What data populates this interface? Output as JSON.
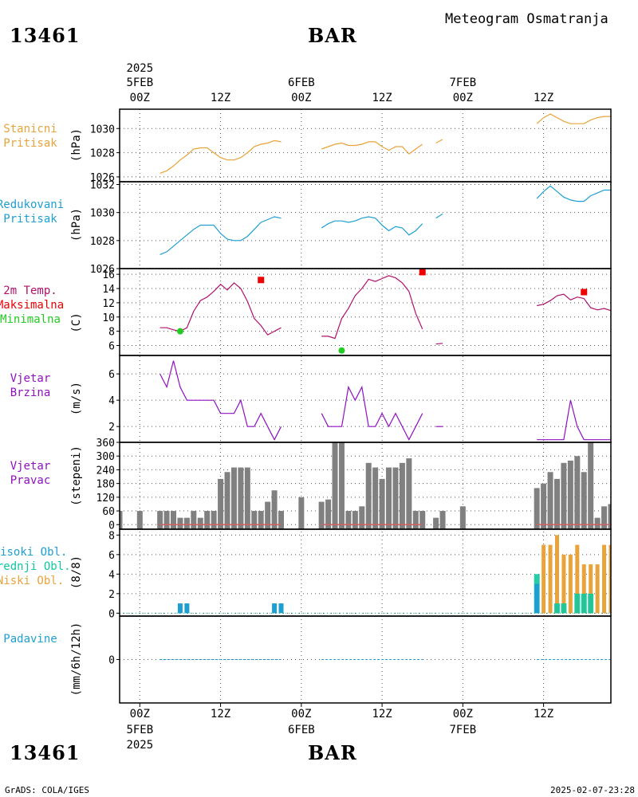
{
  "header": {
    "station_id": "13461",
    "station_name": "BAR",
    "product_title": "Meteogram Osmatranja"
  },
  "footer": {
    "station_id": "13461",
    "station_name": "BAR",
    "credit": "GrADS: COLA/IGES",
    "timestamp": "2025-02-07-23:28"
  },
  "colors": {
    "pressure_station": "#e8a33a",
    "pressure_reduced": "#1e9fd2",
    "temperature": "#b0106a",
    "tmax": "#ee0000",
    "tmin": "#22cc22",
    "wind": "#9010c0",
    "wind_dir_bar": "#808080",
    "wind_dir_base": "#d06060",
    "cloud_high": "#1e9fd2",
    "cloud_mid": "#10c8a0",
    "cloud_low": "#e8a33a",
    "precip": "#1e9fd2"
  },
  "chart_data": {
    "type": "line",
    "time_axis": {
      "top_year": "2025",
      "day_labels": [
        {
          "day": "5FEB",
          "hour": "00Z",
          "h": 0
        },
        {
          "day": "6FEB",
          "hour": "00Z",
          "h": 24
        },
        {
          "day": "7FEB",
          "hour": "00Z",
          "h": 48
        }
      ],
      "noon_labels": [
        {
          "label": "12Z",
          "h": 12
        },
        {
          "label": "12Z",
          "h": 36
        },
        {
          "label": "12Z",
          "h": 60
        }
      ],
      "bottom_year": "2025",
      "range_hours": [
        -3,
        70
      ]
    },
    "panels": [
      {
        "id": "station_pressure",
        "label": [
          "Stanicni",
          "Pritisak"
        ],
        "unit": "(hPa)",
        "ylim": [
          1025.6,
          1031.6
        ],
        "yticks": [
          1026,
          1028,
          1030
        ],
        "series": [
          {
            "x": [
              3,
              4,
              5,
              6,
              7,
              8,
              9,
              10,
              11,
              12,
              13,
              14,
              15,
              16,
              17,
              18,
              19,
              20,
              21,
              22,
              23
            ],
            "y": [
              1026.3,
              1026.5,
              1026.9,
              1027.4,
              1027.8,
              1028.3,
              1028.4,
              1028.4,
              1028.0,
              1027.6,
              1027.4,
              1027.4,
              1027.6,
              1028.0,
              1028.5,
              1028.7,
              1028.8,
              1029.0,
              1028.9,
              null,
              null
            ]
          },
          {
            "x": [
              27,
              28,
              29,
              30,
              31,
              32,
              33,
              34,
              35,
              36,
              37,
              38,
              39,
              40,
              41,
              42,
              43,
              44
            ],
            "y": [
              1028.3,
              1028.5,
              1028.7,
              1028.8,
              1028.6,
              1028.6,
              1028.7,
              1028.9,
              1028.9,
              1028.5,
              1028.2,
              1028.5,
              1028.5,
              1027.9,
              1028.3,
              1028.7,
              null,
              null
            ]
          },
          {
            "x": [
              44,
              45
            ],
            "y": [
              1028.8,
              1029.1
            ]
          },
          {
            "x": [
              59,
              60,
              61,
              62,
              63,
              64,
              65,
              66,
              67,
              68,
              69,
              70
            ],
            "y": [
              1030.4,
              1030.9,
              1031.2,
              1030.9,
              1030.6,
              1030.4,
              1030.4,
              1030.4,
              1030.7,
              1030.9,
              1031.0,
              1031.0
            ]
          }
        ]
      },
      {
        "id": "reduced_pressure",
        "label": [
          "Redukovani",
          "Pritisak"
        ],
        "unit": "(hPa)",
        "ylim": [
          1026.0,
          1032.2
        ],
        "yticks": [
          1026,
          1028,
          1030,
          1032
        ],
        "series": [
          {
            "x": [
              3,
              4,
              5,
              6,
              7,
              8,
              9,
              10,
              11,
              12,
              13,
              14,
              15,
              16,
              17,
              18,
              19,
              20,
              21
            ],
            "y": [
              1027.0,
              1027.2,
              1027.6,
              1028.0,
              1028.4,
              1028.8,
              1029.1,
              1029.1,
              1029.1,
              1028.5,
              1028.1,
              1028.0,
              1028.0,
              1028.3,
              1028.8,
              1029.3,
              1029.5,
              1029.7,
              1029.6
            ]
          },
          {
            "x": [
              27,
              28,
              29,
              30,
              31,
              32,
              33,
              34,
              35,
              36,
              37,
              38,
              39,
              40,
              41,
              42
            ],
            "y": [
              1028.9,
              1029.2,
              1029.4,
              1029.4,
              1029.3,
              1029.4,
              1029.6,
              1029.7,
              1029.6,
              1029.1,
              1028.7,
              1029.0,
              1028.9,
              1028.4,
              1028.7,
              1029.2
            ]
          },
          {
            "x": [
              44,
              45
            ],
            "y": [
              1029.6,
              1029.9
            ]
          },
          {
            "x": [
              59,
              60,
              61,
              62,
              63,
              64,
              65,
              66,
              67,
              68,
              69,
              70
            ],
            "y": [
              1031.0,
              1031.5,
              1031.9,
              1031.5,
              1031.1,
              1030.9,
              1030.8,
              1030.8,
              1031.2,
              1031.4,
              1031.6,
              1031.6
            ]
          }
        ]
      },
      {
        "id": "temperature",
        "label": [
          "2m Temp.",
          "Maksimalna",
          "Minimalna"
        ],
        "unit": "(C)",
        "ylim": [
          4.6,
          16.8
        ],
        "yticks": [
          6,
          8,
          10,
          12,
          14,
          16
        ],
        "series": [
          {
            "x": [
              3,
              4,
              5,
              6,
              7,
              8,
              9,
              10,
              11,
              12,
              13,
              14,
              15,
              16,
              17,
              18,
              19,
              20,
              21
            ],
            "y": [
              8.5,
              8.5,
              8.2,
              8.0,
              8.5,
              10.8,
              12.3,
              12.8,
              13.6,
              14.6,
              13.8,
              14.8,
              14.0,
              12.2,
              9.8,
              8.8,
              7.5,
              8.0,
              8.5
            ]
          },
          {
            "x": [
              27,
              28,
              29,
              30,
              31,
              32,
              33,
              34,
              35,
              36,
              37,
              38,
              39,
              40,
              41,
              42
            ],
            "y": [
              7.3,
              7.3,
              7.0,
              9.8,
              11.2,
              13.0,
              14.0,
              15.3,
              15.0,
              15.4,
              15.8,
              15.5,
              14.8,
              13.6,
              10.5,
              8.3
            ]
          },
          {
            "x": [
              44,
              45
            ],
            "y": [
              6.2,
              6.3
            ]
          },
          {
            "x": [
              59,
              60,
              61,
              62,
              63,
              64,
              65,
              66,
              67,
              68,
              69,
              70
            ],
            "y": [
              11.6,
              11.8,
              12.3,
              13.0,
              13.2,
              12.4,
              12.8,
              12.6,
              11.3,
              11.0,
              11.2,
              10.9
            ]
          }
        ],
        "tmax_points": [
          {
            "x": 18,
            "y": 15.2
          },
          {
            "x": 42,
            "y": 16.3
          },
          {
            "x": 66,
            "y": 13.5
          }
        ],
        "tmin_points": [
          {
            "x": 6,
            "y": 8.0
          },
          {
            "x": 30,
            "y": 5.3
          }
        ]
      },
      {
        "id": "wind_speed",
        "label": [
          "Vjetar",
          "Brzina"
        ],
        "unit": "(m/s)",
        "ylim": [
          0.8,
          7.4
        ],
        "yticks": [
          2,
          4,
          6
        ],
        "series": [
          {
            "x": [
              3,
              4,
              5,
              6,
              7,
              8,
              9,
              10,
              11,
              12,
              13,
              14,
              15,
              16,
              17,
              18,
              19,
              20,
              21
            ],
            "y": [
              6,
              5,
              7,
              5,
              4,
              4,
              4,
              4,
              4,
              3,
              3,
              3,
              4,
              2,
              2,
              3,
              2,
              1,
              2
            ]
          },
          {
            "x": [
              27,
              28,
              29,
              30,
              31,
              32,
              33,
              34,
              35,
              36,
              37,
              38,
              39,
              40,
              41,
              42
            ],
            "y": [
              3,
              2,
              2,
              2,
              5,
              4,
              5,
              2,
              2,
              3,
              2,
              3,
              2,
              1,
              2,
              3
            ]
          },
          {
            "x": [
              44,
              45
            ],
            "y": [
              2,
              2
            ]
          },
          {
            "x": [
              59,
              60,
              61,
              62,
              63,
              64,
              65,
              66,
              67,
              68,
              69,
              70
            ],
            "y": [
              1,
              1,
              1,
              1,
              1,
              4,
              2,
              1,
              1,
              1,
              1,
              1
            ]
          }
        ]
      },
      {
        "id": "wind_direction",
        "label": [
          "Vjetar",
          "Pravac"
        ],
        "unit": "(stepeni)",
        "ylim": [
          -20,
          360
        ],
        "yticks": [
          0,
          60,
          120,
          180,
          240,
          300,
          360
        ],
        "ytick_labels": [
          "0",
          "60",
          "120",
          "180",
          "240",
          "300",
          "360"
        ],
        "bars": {
          "x": [
            -3,
            0,
            3,
            4,
            5,
            6,
            7,
            8,
            9,
            10,
            11,
            12,
            13,
            14,
            15,
            16,
            17,
            18,
            19,
            20,
            21,
            24,
            27,
            28,
            29,
            30,
            31,
            32,
            33,
            34,
            35,
            36,
            37,
            38,
            39,
            40,
            41,
            42,
            44,
            45,
            48,
            59,
            60,
            61,
            62,
            63,
            64,
            65,
            66,
            67,
            68,
            69,
            70
          ],
          "y": [
            60,
            60,
            60,
            60,
            60,
            30,
            30,
            60,
            30,
            60,
            60,
            200,
            230,
            250,
            250,
            250,
            60,
            60,
            100,
            150,
            60,
            120,
            100,
            110,
            360,
            360,
            60,
            60,
            80,
            270,
            250,
            200,
            250,
            250,
            270,
            290,
            60,
            60,
            30,
            60,
            80,
            160,
            180,
            230,
            200,
            270,
            280,
            300,
            230,
            360,
            30,
            80,
            90
          ]
        }
      },
      {
        "id": "cloud_cover",
        "label": [
          "Visoki Obl.",
          "Srednji Obl.",
          "Niski Obl."
        ],
        "unit": "(8/8)",
        "ylim": [
          -0.3,
          8.6
        ],
        "yticks": [
          0,
          2,
          4,
          6,
          8
        ],
        "high": {
          "x": [
            6,
            7,
            20,
            21,
            59
          ],
          "y": [
            1,
            1,
            1,
            1,
            3
          ]
        },
        "mid": {
          "x": [
            59,
            62,
            63,
            65,
            66,
            67
          ],
          "y": [
            4,
            1,
            1,
            2,
            2,
            2
          ]
        },
        "low": {
          "x": [
            59,
            60,
            61,
            62,
            63,
            64,
            65,
            66,
            67,
            68,
            69,
            70,
            71
          ],
          "y": [
            3,
            7,
            7,
            8,
            6,
            6,
            7,
            5,
            5,
            5,
            7,
            7,
            7
          ]
        }
      },
      {
        "id": "precipitation",
        "label": [
          "Padavine"
        ],
        "unit": "(mm/6h/12h)",
        "ylim": [
          -5,
          5
        ],
        "yticks": [
          0
        ],
        "values": {
          "x": [
            3,
            27,
            59
          ],
          "y": [
            0,
            0,
            0
          ]
        }
      }
    ]
  }
}
